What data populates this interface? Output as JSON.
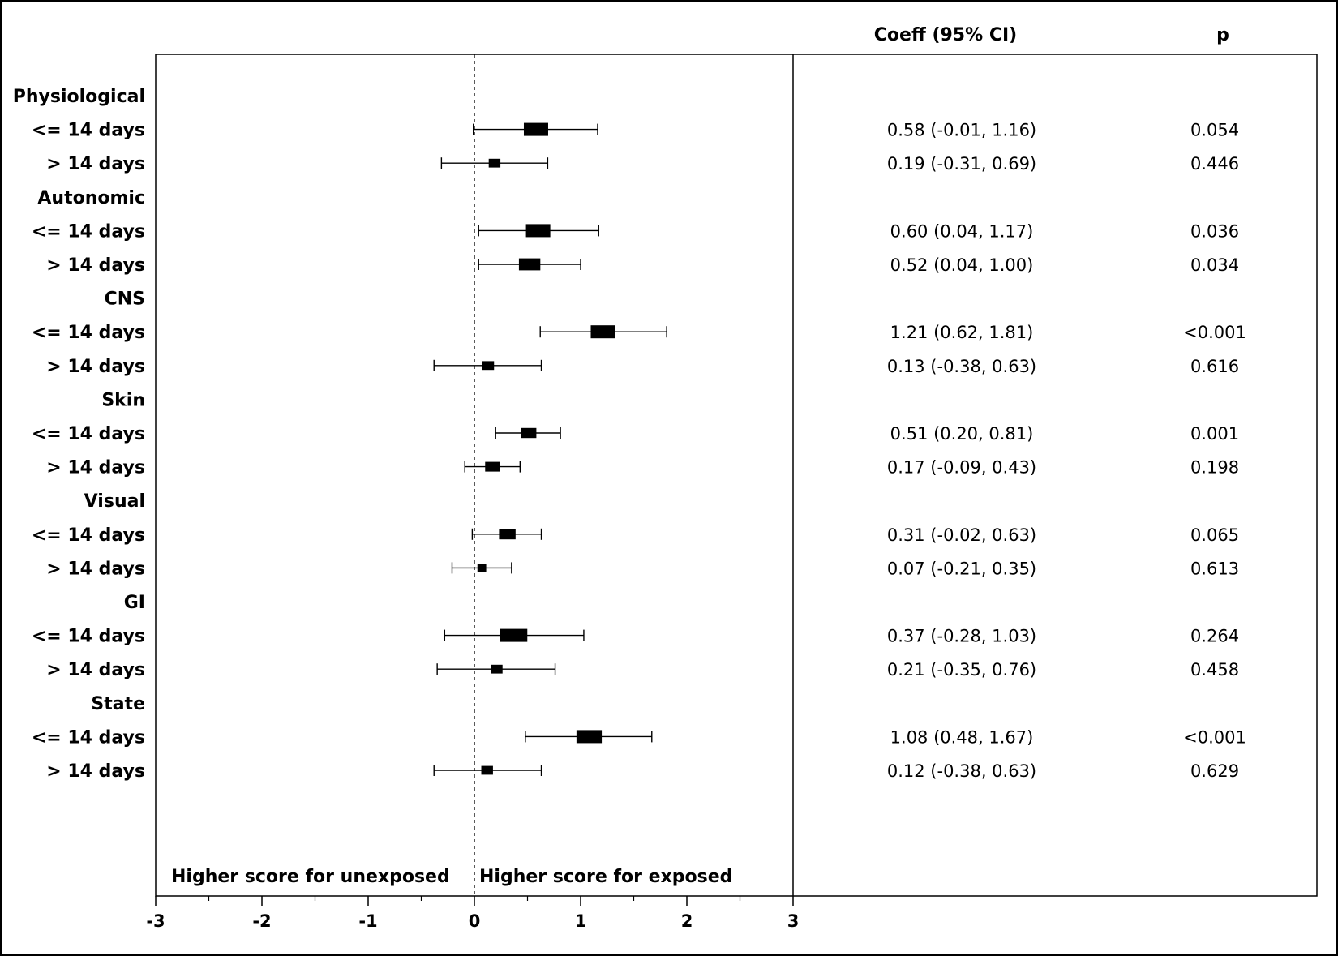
{
  "chart_data": {
    "type": "forest",
    "column_headers": {
      "coeff": "Coeff (95% CI)",
      "p": "p"
    },
    "annotations": {
      "left": "Higher score for unexposed",
      "right": "Higher score for exposed"
    },
    "xlim": [
      -3,
      3
    ],
    "x_ticks": [
      "-3",
      "-2",
      "-1",
      "0",
      "1",
      "2",
      "3"
    ],
    "reference_line": 0,
    "rows": [
      {
        "label": "Physiological",
        "header": true
      },
      {
        "label": "<= 14 days",
        "coef": 0.58,
        "lo": -0.01,
        "hi": 1.16,
        "ci_text": "0.58 (-0.01, 1.16)",
        "p": "0.054",
        "weight": 1.0
      },
      {
        "label": "> 14 days",
        "coef": 0.19,
        "lo": -0.31,
        "hi": 0.69,
        "ci_text": "0.19 (-0.31, 0.69)",
        "p": "0.446",
        "weight": 0.35
      },
      {
        "label": "Autonomic",
        "header": true
      },
      {
        "label": "<= 14 days",
        "coef": 0.6,
        "lo": 0.04,
        "hi": 1.17,
        "ci_text": "0.60 (0.04, 1.17)",
        "p": "0.036",
        "weight": 1.0
      },
      {
        "label": "> 14 days",
        "coef": 0.52,
        "lo": 0.04,
        "hi": 1.0,
        "ci_text": "0.52 (0.04, 1.00)",
        "p": "0.034",
        "weight": 0.85
      },
      {
        "label": "CNS",
        "header": true
      },
      {
        "label": "<= 14 days",
        "coef": 1.21,
        "lo": 0.62,
        "hi": 1.81,
        "ci_text": "1.21 (0.62, 1.81)",
        "p": "<0.001",
        "weight": 1.0
      },
      {
        "label": "> 14 days",
        "coef": 0.13,
        "lo": -0.38,
        "hi": 0.63,
        "ci_text": "0.13 (-0.38, 0.63)",
        "p": "0.616",
        "weight": 0.35
      },
      {
        "label": "Skin",
        "header": true
      },
      {
        "label": "<= 14 days",
        "coef": 0.51,
        "lo": 0.2,
        "hi": 0.81,
        "ci_text": "0.51 (0.20, 0.81)",
        "p": "0.001",
        "weight": 0.55
      },
      {
        "label": "> 14 days",
        "coef": 0.17,
        "lo": -0.09,
        "hi": 0.43,
        "ci_text": "0.17 (-0.09, 0.43)",
        "p": "0.198",
        "weight": 0.5
      },
      {
        "label": "Visual",
        "header": true
      },
      {
        "label": "<= 14 days",
        "coef": 0.31,
        "lo": -0.02,
        "hi": 0.63,
        "ci_text": "0.31 (-0.02, 0.63)",
        "p": "0.065",
        "weight": 0.6
      },
      {
        "label": "> 14 days",
        "coef": 0.07,
        "lo": -0.21,
        "hi": 0.35,
        "ci_text": "0.07 (-0.21, 0.35)",
        "p": "0.613",
        "weight": 0.2
      },
      {
        "label": "GI",
        "header": true
      },
      {
        "label": "<= 14 days",
        "coef": 0.37,
        "lo": -0.28,
        "hi": 1.03,
        "ci_text": "0.37 (-0.28, 1.03)",
        "p": "0.264",
        "weight": 1.15
      },
      {
        "label": "> 14 days",
        "coef": 0.21,
        "lo": -0.35,
        "hi": 0.76,
        "ci_text": "0.21 (-0.35, 0.76)",
        "p": "0.458",
        "weight": 0.35
      },
      {
        "label": "State",
        "header": true
      },
      {
        "label": "<= 14 days",
        "coef": 1.08,
        "lo": 0.48,
        "hi": 1.67,
        "ci_text": "1.08 (0.48, 1.67)",
        "p": "<0.001",
        "weight": 1.05
      },
      {
        "label": "> 14 days",
        "coef": 0.12,
        "lo": -0.38,
        "hi": 0.63,
        "ci_text": "0.12 (-0.38, 0.63)",
        "p": "0.629",
        "weight": 0.35
      }
    ]
  }
}
